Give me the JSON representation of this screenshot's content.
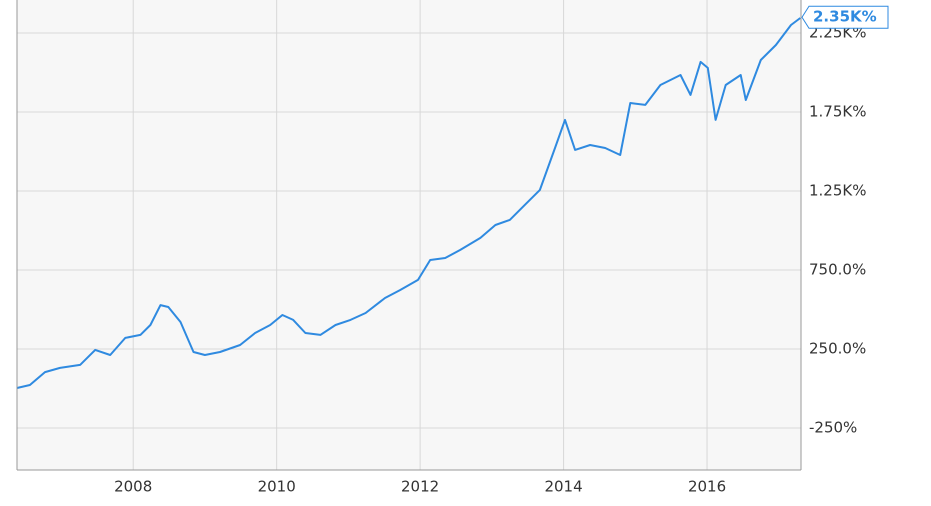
{
  "chart_data": {
    "type": "line",
    "x": [
      2006.38,
      2006.56,
      2006.77,
      2006.98,
      2007.26,
      2007.47,
      2007.68,
      2007.89,
      2008.1,
      2008.24,
      2008.38,
      2008.49,
      2008.66,
      2008.84,
      2009.0,
      2009.21,
      2009.49,
      2009.7,
      2009.91,
      2010.08,
      2010.23,
      2010.4,
      2010.61,
      2010.82,
      2011.03,
      2011.24,
      2011.51,
      2011.72,
      2011.97,
      2012.14,
      2012.35,
      2012.56,
      2012.84,
      2013.05,
      2013.25,
      2013.46,
      2013.67,
      2013.88,
      2014.02,
      2014.16,
      2014.37,
      2014.58,
      2014.79,
      2014.93,
      2015.14,
      2015.35,
      2015.63,
      2015.77,
      2015.91,
      2016.01,
      2016.12,
      2016.26,
      2016.47,
      2016.54,
      2016.75,
      2016.96,
      2017.17,
      2017.3
    ],
    "values": [
      3,
      22,
      104,
      130,
      149,
      244,
      212,
      320,
      339,
      402,
      528,
      516,
      421,
      231,
      212,
      231,
      275,
      351,
      402,
      465,
      434,
      351,
      339,
      402,
      434,
      478,
      573,
      623,
      687,
      813,
      826,
      877,
      953,
      1035,
      1067,
      1162,
      1257,
      1522,
      1700,
      1510,
      1541,
      1522,
      1478,
      1807,
      1795,
      1921,
      1984,
      1858,
      2067,
      2029,
      1700,
      1921,
      1984,
      1826,
      2079,
      2174,
      2301,
      2345
    ],
    "color": "#2f8ae0",
    "xlim": [
      2006.38,
      2017.31
    ],
    "xticks": [
      2008,
      2010,
      2012,
      2014,
      2016
    ],
    "ylim": [
      -516,
      2459
    ],
    "yticks": [
      {
        "value": -250,
        "label": "-250%"
      },
      {
        "value": 250,
        "label": "250.0%"
      },
      {
        "value": 750,
        "label": "750.0%"
      },
      {
        "value": 1250,
        "label": "1.25K%"
      },
      {
        "value": 1750,
        "label": "1.75K%"
      },
      {
        "value": 2250,
        "label": "2.25K%"
      }
    ],
    "grid": true,
    "last_value": {
      "value": 2350,
      "label": "2.35K%"
    }
  }
}
